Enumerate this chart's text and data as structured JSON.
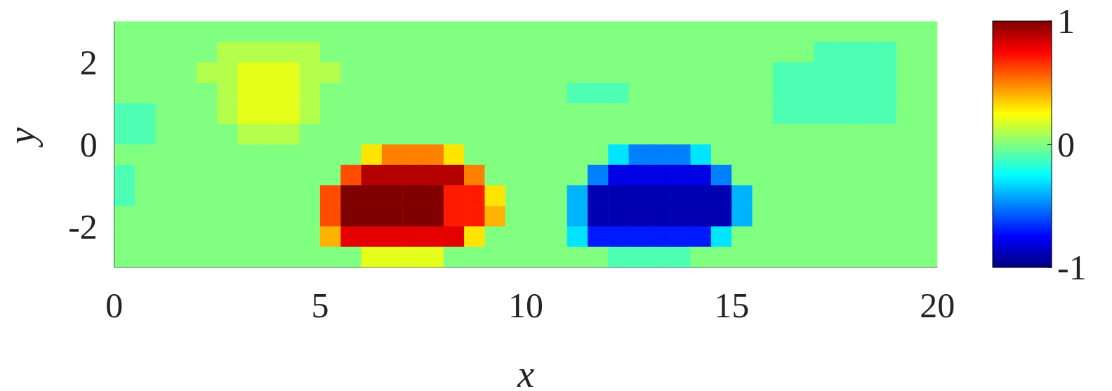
{
  "chart_data": {
    "type": "heatmap",
    "xlabel": "x",
    "ylabel": "y",
    "x": [
      0.25,
      0.75,
      1.25,
      1.75,
      2.25,
      2.75,
      3.25,
      3.75,
      4.25,
      4.75,
      5.25,
      5.75,
      6.25,
      6.75,
      7.25,
      7.75,
      8.25,
      8.75,
      9.25,
      9.75,
      10.25,
      10.75,
      11.25,
      11.75,
      12.25,
      12.75,
      13.25,
      13.75,
      14.25,
      14.75,
      15.25,
      15.75,
      16.25,
      16.75,
      17.25,
      17.75,
      18.25,
      18.75,
      19.25,
      19.75
    ],
    "y": [
      2.75,
      2.25,
      1.75,
      1.25,
      0.75,
      0.25,
      -0.25,
      -0.75,
      -1.25,
      -1.75,
      -2.25,
      -2.75
    ],
    "cells": [
      [
        0,
        0,
        0,
        0,
        0,
        0,
        0,
        0,
        0,
        0,
        0,
        0,
        0,
        0,
        0,
        0,
        0,
        0,
        0,
        0,
        0,
        0,
        0,
        0,
        0,
        0,
        0,
        0,
        0,
        0,
        0,
        0,
        0,
        0,
        0,
        0,
        0,
        0,
        0,
        0
      ],
      [
        0,
        0,
        0,
        0,
        0,
        0.1,
        0.1,
        0.1,
        0.1,
        0.1,
        0,
        0,
        0,
        0,
        0,
        0,
        0,
        0,
        0,
        0,
        0,
        0,
        0,
        0,
        0,
        0,
        0,
        0,
        0,
        0,
        0,
        0,
        0,
        0,
        -0.1,
        -0.1,
        -0.1,
        -0.1,
        0,
        0
      ],
      [
        0,
        0,
        0,
        0,
        0.1,
        0.1,
        0.2,
        0.2,
        0.2,
        0.1,
        0.1,
        0,
        0,
        0,
        0,
        0,
        0,
        0,
        0,
        0,
        0,
        0,
        0,
        0,
        0,
        0,
        0,
        0,
        0,
        0,
        0,
        0,
        -0.1,
        -0.1,
        -0.1,
        -0.1,
        -0.1,
        -0.1,
        0,
        0
      ],
      [
        0,
        0,
        0,
        0,
        0,
        0.1,
        0.2,
        0.2,
        0.2,
        0.1,
        0,
        0,
        0,
        0,
        0,
        0,
        0,
        0,
        0,
        0,
        0,
        0,
        -0.1,
        -0.1,
        -0.1,
        0,
        0,
        0,
        0,
        0,
        0,
        0,
        -0.1,
        -0.1,
        -0.1,
        -0.1,
        -0.1,
        -0.1,
        0,
        0
      ],
      [
        -0.1,
        -0.1,
        0,
        0,
        0,
        0.1,
        0.2,
        0.2,
        0.2,
        0.1,
        0,
        0,
        0,
        0,
        0,
        0,
        0,
        0,
        0,
        0,
        0,
        0,
        0,
        0,
        0,
        0,
        0,
        0,
        0,
        0,
        0,
        0,
        -0.1,
        -0.1,
        -0.1,
        -0.1,
        -0.1,
        -0.1,
        0,
        0
      ],
      [
        -0.1,
        -0.1,
        0,
        0,
        0,
        0,
        0.1,
        0.1,
        0.1,
        0,
        0,
        0,
        0,
        0,
        0,
        0,
        0,
        0,
        0,
        0,
        0,
        0,
        0,
        0,
        0,
        0,
        0,
        0,
        0,
        0,
        0,
        0,
        0,
        0,
        0,
        0,
        0,
        0,
        0,
        0
      ],
      [
        0,
        0,
        0,
        0,
        0,
        0,
        0,
        0,
        0,
        0,
        0,
        0,
        0.3,
        0.5,
        0.5,
        0.5,
        0.3,
        0,
        0,
        0,
        0,
        0,
        0,
        0,
        -0.3,
        -0.5,
        -0.5,
        -0.5,
        -0.3,
        0,
        0,
        0,
        0,
        0,
        0,
        0,
        0,
        0,
        0,
        0
      ],
      [
        -0.1,
        0,
        0,
        0,
        0,
        0,
        0,
        0,
        0,
        0,
        0,
        0.6,
        0.9,
        0.9,
        0.9,
        0.9,
        0.9,
        0.5,
        0,
        0,
        0,
        0,
        0,
        -0.5,
        -0.8,
        -0.8,
        -0.8,
        -0.8,
        -0.8,
        -0.5,
        0,
        0,
        0,
        0,
        0,
        0,
        0,
        0,
        0,
        0
      ],
      [
        -0.1,
        0,
        0,
        0,
        0,
        0,
        0,
        0,
        0,
        0,
        0.6,
        1,
        1,
        1,
        1,
        1,
        0.7,
        0.7,
        0.3,
        0,
        0,
        0,
        -0.4,
        -0.9,
        -0.9,
        -0.9,
        -0.9,
        -0.9,
        -0.9,
        -0.9,
        -0.4,
        0,
        0,
        0,
        0,
        0,
        0,
        0,
        0,
        0
      ],
      [
        0,
        0,
        0,
        0,
        0,
        0,
        0,
        0,
        0,
        0,
        0.6,
        1,
        1,
        1,
        1,
        1,
        0.7,
        0.7,
        0.4,
        0,
        0,
        0,
        -0.4,
        -0.9,
        -0.9,
        -0.9,
        -0.9,
        -0.9,
        -0.9,
        -0.9,
        -0.4,
        0,
        0,
        0,
        0,
        0,
        0,
        0,
        0,
        0
      ],
      [
        0,
        0,
        0,
        0,
        0,
        0,
        0,
        0,
        0,
        0,
        0.4,
        0.8,
        0.8,
        0.8,
        0.8,
        0.8,
        0.8,
        0.3,
        0,
        0,
        0,
        0,
        -0.3,
        -0.7,
        -0.7,
        -0.7,
        -0.7,
        -0.7,
        -0.7,
        -0.3,
        0,
        0,
        0,
        0,
        0,
        0,
        0,
        0,
        0,
        0
      ],
      [
        0,
        0,
        0,
        0,
        0,
        0,
        0,
        0,
        0,
        0,
        0,
        0,
        0.2,
        0.2,
        0.2,
        0.2,
        0,
        0,
        0,
        0,
        0,
        0,
        0,
        0,
        -0.1,
        -0.1,
        -0.1,
        -0.1,
        0,
        0,
        0,
        0,
        0,
        0,
        0,
        0,
        0,
        0,
        0,
        0
      ]
    ],
    "xlim": [
      0,
      20
    ],
    "xticks": [
      0,
      5,
      10,
      15,
      20
    ],
    "ylim": [
      -3,
      3
    ],
    "yticks": [
      -2,
      0,
      2
    ],
    "clim": [
      -1,
      1
    ],
    "cticks": [
      -1,
      0,
      1
    ]
  }
}
